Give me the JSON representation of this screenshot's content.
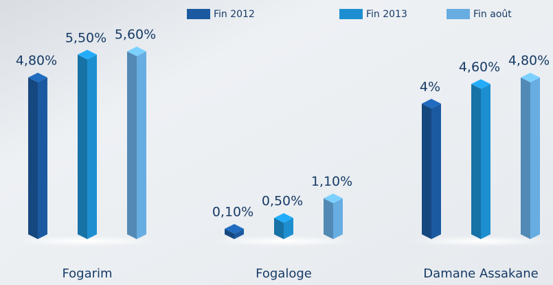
{
  "chart_data": {
    "type": "bar",
    "categories": [
      "Fogarim",
      "Fogaloge",
      "Damane Assakane"
    ],
    "series": [
      {
        "name": "Fin 2012",
        "color": "#1b5aa0",
        "values": [
          4.8,
          0.1,
          4
        ],
        "value_labels": [
          "4,80%",
          "0,10%",
          "4%"
        ]
      },
      {
        "name": "Fin 2013",
        "color": "#1d8fd0",
        "values": [
          5.5,
          0.5,
          4.6
        ],
        "value_labels": [
          "5,50%",
          "0,50%",
          "4,60%"
        ]
      },
      {
        "name": "Fin août",
        "color": "#67ade2",
        "values": [
          5.6,
          1.1,
          4.8
        ],
        "value_labels": [
          "5,60%",
          "1,10%",
          "4,80%"
        ]
      }
    ],
    "legend": "top"
  }
}
